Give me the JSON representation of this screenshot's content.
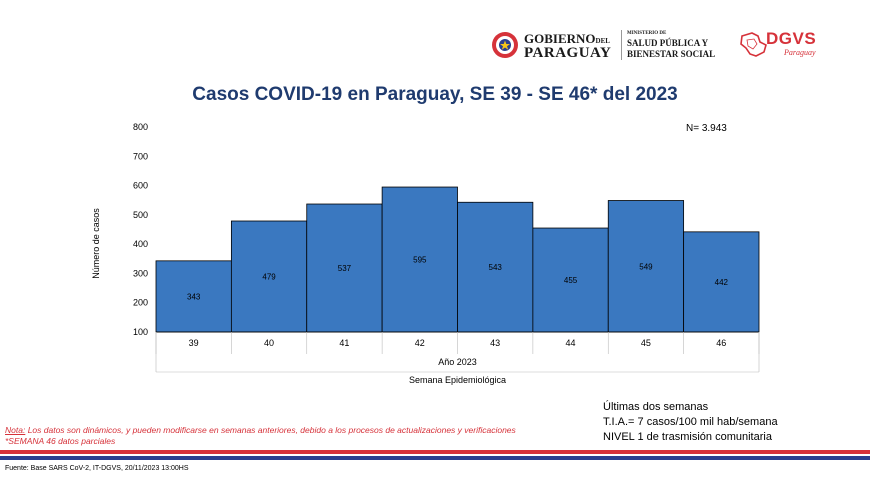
{
  "header": {
    "gobierno_line1": "GOBIERNO",
    "gobierno_del": "DEL",
    "gobierno_line2": "PARAGUAY",
    "ministerio_line1": "MINISTERIO DE",
    "ministerio_line2": "SALUD PÚBLICA Y",
    "ministerio_line3": "BIENESTAR SOCIAL",
    "dgvs": "DGVS",
    "dgvs_sub": "Paraguay"
  },
  "chart_data": {
    "type": "bar",
    "title": "Casos COVID-19 en Paraguay, SE 39 - SE 46* del  2023",
    "categories": [
      "39",
      "40",
      "41",
      "42",
      "43",
      "44",
      "45",
      "46"
    ],
    "values": [
      343,
      479,
      537,
      595,
      543,
      455,
      549,
      442
    ],
    "ylabel": "Número de casos",
    "xgroup_label": "Año 2023",
    "xlabel": "Semana Epidemiológica",
    "ylim": [
      100,
      800
    ],
    "yticks": [
      100,
      200,
      300,
      400,
      500,
      600,
      700,
      800
    ],
    "grid": false,
    "bar_color": "#3a78c0",
    "annotation": "N= 3.943"
  },
  "info": {
    "line1": "Últimas dos semanas",
    "line2": "T.I.A.= 7 casos/100 mil hab/semana",
    "line3": "NIVEL 1 de trasmisión comunitaria"
  },
  "note": {
    "prefix": "Nota:",
    "line1_rest": " Los datos son dinámicos, y pueden modificarse en semanas anteriores, debido a los procesos de actualizaciones y verificaciones",
    "line2": "*SEMANA 46 datos parciales"
  },
  "source": "Fuente: Base SARS CoV-2, IT-DGVS, 20/11/2023 13:00HS",
  "colors": {
    "title": "#1f3b6f",
    "accent_red": "#d6323a",
    "accent_blue": "#2a3f8f"
  }
}
